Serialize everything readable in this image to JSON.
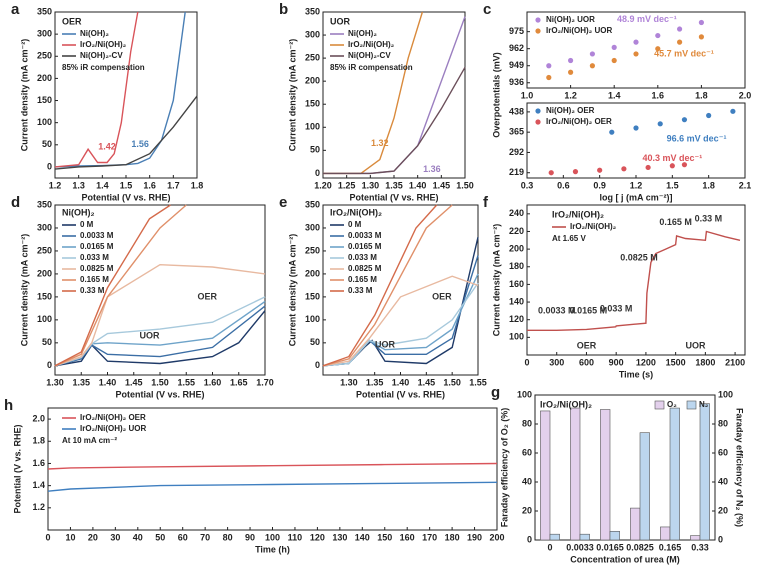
{
  "chart_data": [
    {
      "type": "line",
      "label": "a",
      "xlabel": "Potential (V vs. RHE)",
      "ylabel": "Current density (mA cm⁻²)",
      "legend_title": "OER",
      "note": "85% iR compensation",
      "xlim": [
        1.2,
        1.8
      ],
      "ylim": [
        -25,
        350
      ],
      "xticks": [
        1.2,
        1.3,
        1.4,
        1.5,
        1.6,
        1.7,
        1.8
      ],
      "yticks": [
        0,
        50,
        100,
        150,
        200,
        250,
        300,
        350
      ],
      "series": [
        {
          "name": "Ni(OH)₂",
          "color": "#4a7fb5",
          "x": [
            1.2,
            1.3,
            1.4,
            1.5,
            1.55,
            1.6,
            1.65,
            1.7,
            1.75
          ],
          "values": [
            0,
            2,
            3,
            5,
            8,
            20,
            60,
            150,
            350
          ]
        },
        {
          "name": "IrO₂/Ni(OH)₂",
          "color": "#d9545a",
          "x": [
            1.2,
            1.3,
            1.34,
            1.38,
            1.42,
            1.45,
            1.48,
            1.5,
            1.52,
            1.55
          ],
          "values": [
            0,
            5,
            40,
            10,
            10,
            30,
            100,
            180,
            260,
            350
          ]
        },
        {
          "name": "Ni(OH)₂-CV",
          "color": "#444444",
          "x": [
            1.2,
            1.3,
            1.4,
            1.5,
            1.6,
            1.7,
            1.8
          ],
          "values": [
            -5,
            0,
            2,
            5,
            30,
            90,
            160
          ]
        }
      ],
      "annotations": [
        {
          "text": "1.42",
          "x": 1.42,
          "y": 45,
          "color": "#d9545a"
        },
        {
          "text": "1.56",
          "x": 1.56,
          "y": 50,
          "color": "#4a7fb5"
        }
      ]
    },
    {
      "type": "line",
      "label": "b",
      "xlabel": "Potential (V vs. RHE)",
      "ylabel": "Current density (mA cm⁻²)",
      "legend_title": "UOR",
      "note": "85% iR compensation",
      "xlim": [
        1.2,
        1.5
      ],
      "ylim": [
        -10,
        350
      ],
      "xticks": [
        {
          "value": 1.2,
          "label": "1.20"
        },
        {
          "value": 1.25,
          "label": "1.25"
        },
        {
          "value": 1.3,
          "label": "1.30"
        },
        {
          "value": 1.35,
          "label": "1.35"
        },
        {
          "value": 1.4,
          "label": "1.40"
        },
        {
          "value": 1.45,
          "label": "1.45"
        },
        {
          "value": 1.5,
          "label": "1.50"
        }
      ],
      "yticks": [
        0,
        50,
        100,
        150,
        200,
        250,
        300,
        350
      ],
      "series": [
        {
          "name": "Ni(OH)₂",
          "color": "#9b7fc0",
          "x": [
            1.2,
            1.3,
            1.35,
            1.4,
            1.45,
            1.5
          ],
          "values": [
            0,
            0,
            5,
            60,
            200,
            340
          ]
        },
        {
          "name": "IrO₂/Ni(OH)₂",
          "color": "#d98a3c",
          "x": [
            1.2,
            1.28,
            1.32,
            1.35,
            1.38,
            1.41
          ],
          "values": [
            0,
            0,
            30,
            120,
            250,
            350
          ]
        },
        {
          "name": "Ni(OH)₂-CV",
          "color": "#6b4f5a",
          "x": [
            1.2,
            1.3,
            1.35,
            1.4,
            1.45,
            1.5
          ],
          "values": [
            0,
            0,
            5,
            60,
            140,
            230
          ]
        }
      ],
      "annotations": [
        {
          "text": "1.32",
          "x": 1.32,
          "y": 65,
          "color": "#d98a3c"
        },
        {
          "text": "1.36",
          "x": 1.43,
          "y": 8,
          "color": "#9b7fc0"
        }
      ]
    },
    {
      "type": "scatter",
      "label": "c",
      "xlim": [
        1.0,
        2.0
      ],
      "ylim": [
        932,
        990
      ],
      "xticks": [
        {
          "value": 1.0,
          "label": "1.0"
        },
        1.2,
        1.4,
        1.6,
        1.8,
        {
          "value": 2.0,
          "label": "2.0"
        }
      ],
      "yticks": [
        936,
        949,
        962,
        975
      ],
      "series": [
        {
          "name": "Ni(OH)₂ UOR",
          "color": "#b084d8",
          "x": [
            1.1,
            1.2,
            1.3,
            1.4,
            1.5,
            1.6,
            1.7,
            1.8
          ],
          "values": [
            949,
            953,
            958,
            963,
            967,
            972,
            977,
            982
          ]
        },
        {
          "name": "IrO₂/Ni(OH)₂ UOR",
          "color": "#e08a3c",
          "x": [
            1.1,
            1.2,
            1.3,
            1.4,
            1.5,
            1.6,
            1.7,
            1.8
          ],
          "values": [
            940,
            944,
            949,
            953,
            958,
            962,
            967,
            971
          ]
        }
      ],
      "annotations": [
        {
          "text": "48.9 mV dec⁻¹",
          "x": 1.55,
          "y": 984,
          "color": "#b084d8"
        },
        {
          "text": "45.7 mV dec⁻¹",
          "x": 1.72,
          "y": 958,
          "color": "#e08a3c"
        }
      ]
    },
    {
      "type": "scatter",
      "xlabel": "log [ j (mA cm⁻²)]",
      "ylabel": "Overpotentials (mV)",
      "xlim": [
        0.3,
        2.1
      ],
      "ylim": [
        200,
        470
      ],
      "xticks": [
        0.3,
        0.6,
        0.9,
        1.2,
        1.5,
        1.8,
        2.1
      ],
      "yticks": [
        219,
        292,
        365,
        438
      ],
      "series": [
        {
          "name": "Ni(OH)₂ OER",
          "color": "#3f7fc0",
          "x": [
            1.0,
            1.2,
            1.4,
            1.6,
            1.8,
            2.0
          ],
          "values": [
            365,
            380,
            395,
            410,
            425,
            440
          ]
        },
        {
          "name": "IrO₂/Ni(OH)₂ OER",
          "color": "#d9545a",
          "x": [
            0.5,
            0.7,
            0.9,
            1.1,
            1.3,
            1.5,
            1.6
          ],
          "values": [
            219,
            223,
            228,
            233,
            238,
            244,
            248
          ]
        }
      ],
      "annotations": [
        {
          "text": "96.6 mV dec⁻¹",
          "x": 1.7,
          "y": 340,
          "color": "#3f7fc0"
        },
        {
          "text": "40.3 mV dec⁻¹",
          "x": 1.5,
          "y": 270,
          "color": "#d9545a"
        }
      ]
    },
    {
      "type": "line",
      "label": "d",
      "xlabel": "Potential (V vs. RHE)",
      "ylabel": "Current density (mA cm⁻²)",
      "legend_title": "Ni(OH)₂",
      "xlim": [
        1.3,
        1.7
      ],
      "ylim": [
        -20,
        350
      ],
      "xticks": [
        {
          "value": 1.3,
          "label": "1.30"
        },
        {
          "value": 1.35,
          "label": "1.35"
        },
        {
          "value": 1.4,
          "label": "1.40"
        },
        {
          "value": 1.45,
          "label": "1.45"
        },
        {
          "value": 1.5,
          "label": "1.50"
        },
        {
          "value": 1.55,
          "label": "1.55"
        },
        {
          "value": 1.6,
          "label": "1.60"
        },
        {
          "value": 1.65,
          "label": "1.65"
        },
        {
          "value": 1.7,
          "label": "1.70"
        }
      ],
      "yticks": [
        0,
        50,
        100,
        150,
        200,
        250,
        300,
        350
      ],
      "series": [
        {
          "name": "0 M",
          "color": "#1f3a68",
          "x": [
            1.3,
            1.35,
            1.37,
            1.4,
            1.5,
            1.6,
            1.65,
            1.7
          ],
          "values": [
            0,
            10,
            45,
            10,
            5,
            20,
            50,
            120
          ]
        },
        {
          "name": "0.0033 M",
          "color": "#3b6ea5",
          "x": [
            1.3,
            1.35,
            1.37,
            1.4,
            1.5,
            1.6,
            1.7
          ],
          "values": [
            0,
            15,
            45,
            25,
            20,
            40,
            130
          ]
        },
        {
          "name": "0.0165 M",
          "color": "#6ea3c9",
          "x": [
            1.3,
            1.35,
            1.37,
            1.4,
            1.5,
            1.6,
            1.7
          ],
          "values": [
            0,
            18,
            48,
            50,
            45,
            60,
            140
          ]
        },
        {
          "name": "0.033 M",
          "color": "#a7c9dc",
          "x": [
            1.3,
            1.35,
            1.37,
            1.4,
            1.5,
            1.6,
            1.7
          ],
          "values": [
            0,
            18,
            48,
            70,
            80,
            95,
            150
          ]
        },
        {
          "name": "0.0825 M",
          "color": "#e8b9a0",
          "x": [
            1.3,
            1.35,
            1.37,
            1.4,
            1.5,
            1.6,
            1.7
          ],
          "values": [
            0,
            20,
            50,
            150,
            220,
            215,
            200
          ]
        },
        {
          "name": "0.165 M",
          "color": "#e0906a",
          "x": [
            1.3,
            1.35,
            1.4,
            1.5,
            1.55
          ],
          "values": [
            0,
            25,
            150,
            300,
            350
          ]
        },
        {
          "name": "0.33 M",
          "color": "#d46a4a",
          "x": [
            1.3,
            1.35,
            1.4,
            1.48,
            1.52
          ],
          "values": [
            0,
            30,
            170,
            320,
            350
          ]
        }
      ],
      "annotations": [
        {
          "text": "UOR",
          "x": 1.48,
          "y": 65,
          "color": "#333"
        },
        {
          "text": "OER",
          "x": 1.59,
          "y": 150,
          "color": "#333"
        }
      ]
    },
    {
      "type": "line",
      "label": "e",
      "xlabel": "Potential (V vs. RHE)",
      "ylabel": "Current density (mA cm⁻²)",
      "legend_title": "IrO₂/Ni(OH)₂",
      "xlim": [
        1.25,
        1.55
      ],
      "ylim": [
        -20,
        350
      ],
      "xticks": [
        {
          "value": 1.3,
          "label": "1.30"
        },
        {
          "value": 1.35,
          "label": "1.35"
        },
        {
          "value": 1.4,
          "label": "1.40"
        },
        {
          "value": 1.45,
          "label": "1.45"
        },
        {
          "value": 1.5,
          "label": "1.50"
        },
        {
          "value": 1.55,
          "label": "1.55"
        }
      ],
      "yticks": [
        0,
        50,
        100,
        150,
        200,
        250,
        300,
        350
      ],
      "series": [
        {
          "name": "0 M",
          "color": "#1f3a68",
          "x": [
            1.25,
            1.3,
            1.33,
            1.345,
            1.37,
            1.45,
            1.5,
            1.55
          ],
          "values": [
            0,
            5,
            40,
            55,
            10,
            5,
            40,
            280
          ]
        },
        {
          "name": "0.0033 M",
          "color": "#3b6ea5",
          "x": [
            1.25,
            1.3,
            1.34,
            1.37,
            1.45,
            1.5,
            1.55
          ],
          "values": [
            0,
            5,
            55,
            25,
            25,
            60,
            240
          ]
        },
        {
          "name": "0.0165 M",
          "color": "#6ea3c9",
          "x": [
            1.25,
            1.3,
            1.34,
            1.37,
            1.45,
            1.5,
            1.55
          ],
          "values": [
            0,
            5,
            55,
            35,
            40,
            80,
            200
          ]
        },
        {
          "name": "0.033 M",
          "color": "#a7c9dc",
          "x": [
            1.25,
            1.3,
            1.34,
            1.37,
            1.45,
            1.5,
            1.55
          ],
          "values": [
            0,
            5,
            55,
            45,
            60,
            100,
            180
          ]
        },
        {
          "name": "0.0825 M",
          "color": "#e8b9a0",
          "x": [
            1.25,
            1.3,
            1.34,
            1.4,
            1.5,
            1.55
          ],
          "values": [
            0,
            10,
            60,
            150,
            195,
            175
          ]
        },
        {
          "name": "0.165 M",
          "color": "#e0906a",
          "x": [
            1.25,
            1.3,
            1.35,
            1.45,
            1.5
          ],
          "values": [
            0,
            15,
            90,
            300,
            350
          ]
        },
        {
          "name": "0.33 M",
          "color": "#d46a4a",
          "x": [
            1.25,
            1.3,
            1.35,
            1.43,
            1.47
          ],
          "values": [
            0,
            20,
            110,
            300,
            350
          ]
        }
      ],
      "annotations": [
        {
          "text": "UOR",
          "x": 1.37,
          "y": 45,
          "color": "#333"
        },
        {
          "text": "OER",
          "x": 1.48,
          "y": 150,
          "color": "#333"
        }
      ]
    },
    {
      "type": "line",
      "label": "f",
      "xlabel": "Time (s)",
      "ylabel": "Current density (mA cm⁻²)",
      "legend_title": "IrO₂/Ni(OH)₂",
      "note": "At 1.65 V",
      "xlim": [
        0,
        2200
      ],
      "ylim": [
        80,
        250
      ],
      "xticks": [
        0,
        300,
        600,
        900,
        1200,
        1500,
        1800,
        2100
      ],
      "yticks": [
        100,
        120,
        140,
        160,
        180,
        200,
        220,
        240
      ],
      "series": [
        {
          "name": "IrO₂/Ni(OH)₂",
          "color": "#c0504d",
          "x": [
            0,
            300,
            600,
            895,
            900,
            1200,
            1210,
            1250,
            1300,
            1400,
            1500,
            1510,
            1600,
            1800,
            1810,
            2000,
            2150
          ],
          "values": [
            108,
            108,
            109,
            112,
            113,
            116,
            150,
            185,
            195,
            200,
            205,
            215,
            212,
            210,
            220,
            214,
            210
          ]
        }
      ],
      "annotations": [
        {
          "text": "0.0033 M",
          "x": 300,
          "y": 130,
          "color": "#333"
        },
        {
          "text": "0.0165 M",
          "x": 620,
          "y": 130,
          "color": "#333"
        },
        {
          "text": "0.033 M",
          "x": 900,
          "y": 132,
          "color": "#333"
        },
        {
          "text": "0.0825 M",
          "x": 1130,
          "y": 190,
          "color": "#333"
        },
        {
          "text": "0.165 M",
          "x": 1500,
          "y": 230,
          "color": "#333"
        },
        {
          "text": "0.33 M",
          "x": 1830,
          "y": 234,
          "color": "#333"
        },
        {
          "text": "OER",
          "x": 600,
          "y": 90,
          "color": "#333"
        },
        {
          "text": "UOR",
          "x": 1700,
          "y": 90,
          "color": "#333"
        }
      ]
    },
    {
      "type": "line",
      "label": "h",
      "xlabel": "Time (h)",
      "ylabel": "Potential (V vs. RHE)",
      "note": "At 10 mA cm⁻²",
      "xlim": [
        0,
        200
      ],
      "ylim": [
        1.0,
        2.1
      ],
      "xticks": [
        0,
        10,
        20,
        30,
        40,
        50,
        60,
        70,
        80,
        90,
        100,
        110,
        120,
        130,
        140,
        150,
        160,
        170,
        180,
        190,
        200
      ],
      "yticks": [
        1.2,
        1.4,
        1.6,
        1.8,
        {
          "value": 2.0,
          "label": "2.0"
        }
      ],
      "series": [
        {
          "name": "IrO₂/Ni(OH)₂ OER",
          "color": "#d9545a",
          "x": [
            0,
            10,
            50,
            100,
            150,
            200
          ],
          "values": [
            1.55,
            1.56,
            1.57,
            1.58,
            1.59,
            1.6
          ]
        },
        {
          "name": "IrO₂/Ni(OH)₂ UOR",
          "color": "#3f7fc0",
          "x": [
            0,
            10,
            50,
            100,
            150,
            200
          ],
          "values": [
            1.35,
            1.37,
            1.4,
            1.41,
            1.42,
            1.43
          ]
        }
      ]
    },
    {
      "type": "bar",
      "label": "g",
      "xlabel": "Concentration of urea (M)",
      "ylabel": "Faraday efficiency of O₂ (%)",
      "y2label": "Faraday efficiency of N₂ (%)",
      "legend_title": "IrO₂/Ni(OH)₂",
      "categories": [
        "0",
        "0.0033",
        "0.0165",
        "0.0825",
        "0.165",
        "0.33"
      ],
      "ylim": [
        0,
        100
      ],
      "yticks": [
        0,
        20,
        40,
        60,
        80,
        100
      ],
      "y2lim": [
        0,
        100
      ],
      "y2ticks": [
        0,
        20,
        40,
        60,
        80,
        100
      ],
      "series": [
        {
          "name": "O₂",
          "color": "#e3d0ec",
          "values": [
            89,
            91,
            90,
            22,
            9,
            3
          ]
        },
        {
          "name": "N₂",
          "color": "#bcd6ee",
          "values": [
            4,
            4,
            6,
            74,
            91,
            94
          ],
          "axis": "y2"
        }
      ]
    }
  ]
}
